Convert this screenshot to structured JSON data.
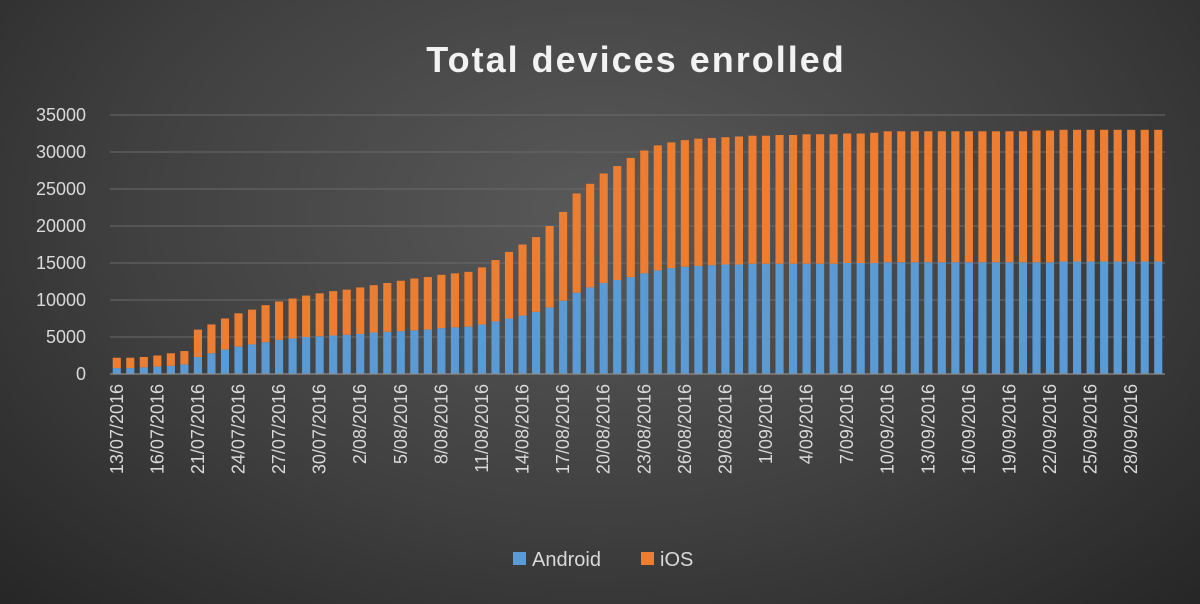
{
  "chart_data": {
    "type": "bar",
    "stacked": true,
    "title": "Total devices enrolled",
    "xlabel": "",
    "ylabel": "",
    "ylim": [
      0,
      35000
    ],
    "yticks": [
      0,
      5000,
      10000,
      15000,
      20000,
      25000,
      30000,
      35000
    ],
    "grid": true,
    "legend_position": "bottom",
    "categories": [
      "13/07/2016",
      "14/07/2016",
      "15/07/2016",
      "16/07/2016",
      "17/07/2016",
      "18/07/2016",
      "21/07/2016",
      "22/07/2016",
      "23/07/2016",
      "24/07/2016",
      "25/07/2016",
      "26/07/2016",
      "27/07/2016",
      "28/07/2016",
      "29/07/2016",
      "30/07/2016",
      "31/07/2016",
      "1/08/2016",
      "2/08/2016",
      "3/08/2016",
      "4/08/2016",
      "5/08/2016",
      "6/08/2016",
      "7/08/2016",
      "8/08/2016",
      "9/08/2016",
      "10/08/2016",
      "11/08/2016",
      "12/08/2016",
      "13/08/2016",
      "14/08/2016",
      "15/08/2016",
      "16/08/2016",
      "17/08/2016",
      "18/08/2016",
      "19/08/2016",
      "20/08/2016",
      "21/08/2016",
      "22/08/2016",
      "23/08/2016",
      "24/08/2016",
      "25/08/2016",
      "26/08/2016",
      "27/08/2016",
      "28/08/2016",
      "29/08/2016",
      "30/08/2016",
      "31/08/2016",
      "1/09/2016",
      "2/09/2016",
      "3/09/2016",
      "4/09/2016",
      "5/09/2016",
      "6/09/2016",
      "7/09/2016",
      "8/09/2016",
      "9/09/2016",
      "10/09/2016",
      "11/09/2016",
      "12/09/2016",
      "13/09/2016",
      "14/09/2016",
      "15/09/2016",
      "16/09/2016",
      "17/09/2016",
      "18/09/2016",
      "19/09/2016",
      "20/09/2016",
      "21/09/2016",
      "22/09/2016",
      "23/09/2016",
      "24/09/2016",
      "25/09/2016",
      "26/09/2016",
      "27/09/2016",
      "28/09/2016",
      "29/09/2016",
      "30/09/2016"
    ],
    "x_tick_labels": [
      "13/07/2016",
      "16/07/2016",
      "21/07/2016",
      "24/07/2016",
      "27/07/2016",
      "30/07/2016",
      "2/08/2016",
      "5/08/2016",
      "8/08/2016",
      "11/08/2016",
      "14/08/2016",
      "17/08/2016",
      "20/08/2016",
      "23/08/2016",
      "26/08/2016",
      "29/08/2016",
      "1/09/2016",
      "4/09/2016",
      "7/09/2016",
      "10/09/2016",
      "13/09/2016",
      "16/09/2016",
      "19/09/2016",
      "22/09/2016",
      "25/09/2016",
      "28/09/2016"
    ],
    "series": [
      {
        "name": "Android",
        "color": "#5b9bd5",
        "values": [
          800,
          800,
          900,
          1000,
          1100,
          1300,
          2300,
          2800,
          3300,
          3700,
          4000,
          4300,
          4600,
          4800,
          5000,
          5100,
          5200,
          5300,
          5400,
          5600,
          5700,
          5800,
          5900,
          6000,
          6200,
          6300,
          6400,
          6700,
          7100,
          7500,
          7900,
          8400,
          9000,
          9900,
          11000,
          11700,
          12300,
          12700,
          13100,
          13600,
          14000,
          14300,
          14500,
          14600,
          14700,
          14800,
          14800,
          14900,
          14900,
          14900,
          14900,
          14900,
          14900,
          14900,
          15000,
          15000,
          15000,
          15100,
          15100,
          15100,
          15100,
          15100,
          15100,
          15100,
          15100,
          15100,
          15100,
          15100,
          15100,
          15100,
          15200,
          15200,
          15200,
          15200,
          15200,
          15200,
          15200,
          15200
        ]
      },
      {
        "name": "iOS",
        "color": "#ed7d31",
        "values": [
          1400,
          1400,
          1400,
          1500,
          1700,
          1800,
          3700,
          3900,
          4200,
          4500,
          4700,
          5000,
          5200,
          5400,
          5600,
          5800,
          6000,
          6100,
          6300,
          6400,
          6600,
          6800,
          7000,
          7100,
          7200,
          7300,
          7400,
          7700,
          8300,
          9000,
          9600,
          10100,
          11000,
          12000,
          13400,
          14000,
          14800,
          15400,
          16100,
          16600,
          16900,
          17000,
          17100,
          17200,
          17200,
          17200,
          17300,
          17300,
          17300,
          17400,
          17400,
          17500,
          17500,
          17500,
          17500,
          17500,
          17600,
          17700,
          17700,
          17700,
          17700,
          17700,
          17700,
          17700,
          17700,
          17700,
          17700,
          17700,
          17800,
          17800,
          17800,
          17800,
          17800,
          17800,
          17800,
          17800,
          17800,
          17800
        ]
      }
    ]
  }
}
